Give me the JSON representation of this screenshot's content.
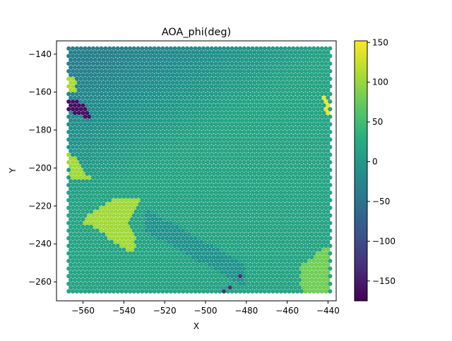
{
  "chart_data": {
    "type": "scatter",
    "title": "AOA_phi(deg)",
    "xlabel": "X",
    "ylabel": "Y",
    "xlim": [
      -573,
      -436
    ],
    "ylim": [
      -270,
      -133
    ],
    "xticks": [
      -560,
      -540,
      -520,
      -500,
      -480,
      -460,
      -440
    ],
    "yticks": [
      -140,
      -160,
      -180,
      -200,
      -220,
      -240,
      -260
    ],
    "xtick_labels": [
      "−560",
      "−540",
      "−520",
      "−500",
      "−480",
      "−460",
      "−440"
    ],
    "ytick_labels": [
      "−140",
      "−160",
      "−180",
      "−200",
      "−220",
      "−240",
      "−260"
    ],
    "grid": false,
    "colorbar": {
      "colormap": "viridis",
      "range": [
        -175,
        152
      ],
      "ticks": [
        150,
        100,
        50,
        0,
        -50,
        -100,
        -150
      ],
      "tick_labels": [
        "150",
        "100",
        "50",
        "0",
        "−50",
        "−100",
        "−150"
      ]
    },
    "grid_extent": {
      "x": [
        -567,
        -439
      ],
      "y": [
        -265,
        -137
      ]
    },
    "marker_spacing": 2,
    "regions": [
      {
        "name": "plateau",
        "value": 105,
        "polygon": [
          [
            -533,
            -215
          ],
          [
            -545,
            -216
          ],
          [
            -558,
            -225
          ],
          [
            -560,
            -229
          ],
          [
            -555,
            -231
          ],
          [
            -547,
            -237
          ],
          [
            -538,
            -243
          ],
          [
            -534,
            -243
          ],
          [
            -534,
            -236
          ],
          [
            -538,
            -228
          ],
          [
            -531,
            -216
          ]
        ]
      },
      {
        "name": "bottom-right-patch",
        "value": 80,
        "polygon": [
          [
            -453,
            -250
          ],
          [
            -448,
            -248
          ],
          [
            -444,
            -244
          ],
          [
            -439,
            -241
          ],
          [
            -439,
            -265
          ],
          [
            -451,
            -265
          ],
          [
            -453,
            -262
          ],
          [
            -453,
            -256
          ]
        ]
      },
      {
        "name": "top-left-patch",
        "value": 110,
        "polygon": [
          [
            -567,
            -152
          ],
          [
            -563,
            -152
          ],
          [
            -563,
            -160
          ],
          [
            -567,
            -160
          ]
        ]
      },
      {
        "name": "left-patch",
        "value": 105,
        "polygon": [
          [
            -567,
            -190
          ],
          [
            -563,
            -196
          ],
          [
            -560,
            -200
          ],
          [
            -556,
            -206
          ],
          [
            -566,
            -207
          ],
          [
            -567,
            -200
          ]
        ]
      },
      {
        "name": "dark-cluster",
        "value": -160,
        "polygon": [
          [
            -567,
            -163
          ],
          [
            -563,
            -164
          ],
          [
            -558,
            -168
          ],
          [
            -556,
            -173
          ],
          [
            -560,
            -173
          ],
          [
            -565,
            -171
          ],
          [
            -567,
            -170
          ]
        ]
      },
      {
        "name": "purple-streak",
        "value": -130,
        "polygon": [
          [
            -481,
            -255
          ],
          [
            -484,
            -258
          ],
          [
            -487,
            -262
          ],
          [
            -492,
            -265
          ],
          [
            -489,
            -265
          ],
          [
            -486,
            -260
          ],
          [
            -482,
            -258
          ]
        ]
      },
      {
        "name": "yellow-right",
        "value": 145,
        "polygon": [
          [
            -443,
            -162
          ],
          [
            -442,
            -166
          ],
          [
            -441,
            -170
          ],
          [
            -439,
            -172
          ],
          [
            -439,
            -168
          ],
          [
            -440,
            -163
          ]
        ]
      }
    ]
  }
}
